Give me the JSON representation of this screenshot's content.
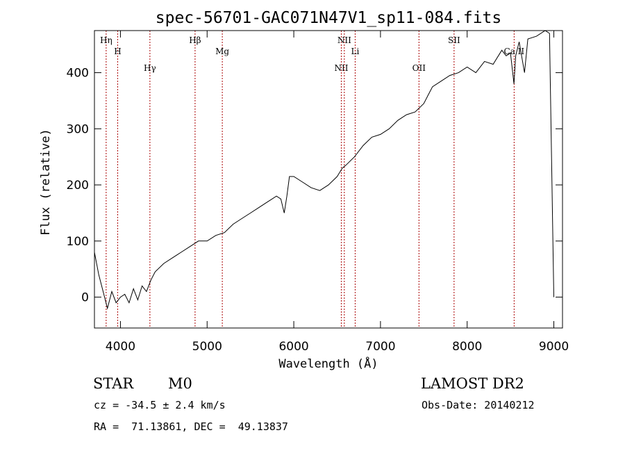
{
  "chart_data": {
    "type": "line",
    "title": "spec-56701-GAC071N47V1_sp11-084.fits",
    "xlabel": "Wavelength (Å)",
    "ylabel": "Flux (relative)",
    "xlim": [
      3700,
      9100
    ],
    "ylim": [
      -55,
      475
    ],
    "xticks": [
      4000,
      5000,
      6000,
      7000,
      8000,
      9000
    ],
    "yticks": [
      0,
      100,
      200,
      300,
      400
    ],
    "grid": false,
    "series_color": "#000000",
    "line_marker_color": "#aa0000",
    "spectrum": {
      "x": [
        3700,
        3750,
        3800,
        3850,
        3900,
        3950,
        4000,
        4050,
        4100,
        4150,
        4200,
        4250,
        4300,
        4350,
        4400,
        4500,
        4600,
        4700,
        4800,
        4850,
        4900,
        5000,
        5100,
        5200,
        5300,
        5400,
        5500,
        5600,
        5700,
        5800,
        5850,
        5890,
        5920,
        5950,
        6000,
        6100,
        6200,
        6300,
        6400,
        6500,
        6560,
        6600,
        6700,
        6800,
        6900,
        7000,
        7100,
        7200,
        7300,
        7400,
        7500,
        7550,
        7600,
        7700,
        7800,
        7900,
        8000,
        8100,
        8200,
        8300,
        8400,
        8450,
        8500,
        8540,
        8560,
        8600,
        8662,
        8700,
        8800,
        8900,
        8950,
        9000
      ],
      "y": [
        80,
        40,
        10,
        -20,
        10,
        -10,
        0,
        5,
        -10,
        15,
        -5,
        20,
        10,
        30,
        45,
        60,
        70,
        80,
        90,
        95,
        100,
        100,
        110,
        115,
        130,
        140,
        150,
        160,
        170,
        180,
        175,
        150,
        180,
        215,
        215,
        205,
        195,
        190,
        200,
        215,
        230,
        235,
        250,
        270,
        285,
        290,
        300,
        315,
        325,
        330,
        345,
        360,
        375,
        385,
        395,
        400,
        410,
        400,
        420,
        415,
        440,
        430,
        435,
        380,
        430,
        455,
        400,
        460,
        465,
        475,
        470,
        0
      ]
    },
    "lines": [
      {
        "label": "Hη",
        "wavelength": 3835
      },
      {
        "label": "H",
        "wavelength": 3968
      },
      {
        "label": "Hγ",
        "wavelength": 4340
      },
      {
        "label": "Hβ",
        "wavelength": 4861
      },
      {
        "label": "Mg",
        "wavelength": 5175
      },
      {
        "label": "NII",
        "wavelength": 6548
      },
      {
        "label": "NII",
        "wavelength": 6583
      },
      {
        "label": "Li",
        "wavelength": 6708
      },
      {
        "label": "OII",
        "wavelength": 7444
      },
      {
        "label": "SII",
        "wavelength": 7849
      },
      {
        "label": "Ca II",
        "wavelength": 8542
      }
    ]
  },
  "info": {
    "class": "STAR",
    "subclass": "M0",
    "survey": "LAMOST DR2",
    "cz": "cz = -34.5 ± 2.4 km/s",
    "obs_date": "Obs-Date: 20140212",
    "coords": "RA =  71.13861, DEC =  49.13837"
  }
}
